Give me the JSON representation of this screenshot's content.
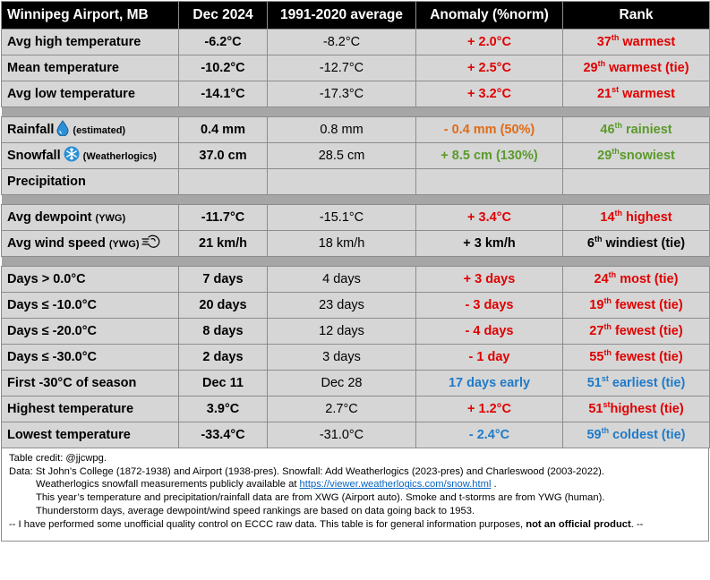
{
  "colors": {
    "red": "#e00000",
    "orange": "#e06b17",
    "green": "#5a9a2a",
    "blue": "#1f7ac8"
  },
  "header": {
    "location": "Winnipeg Airport, MB",
    "month": "Dec 2024",
    "average": "1991-2020 average",
    "anomaly": "Anomaly (%norm)",
    "rank": "Rank"
  },
  "rows": {
    "avg_high": {
      "label": "Avg high temperature",
      "value": "-6.2°C",
      "avg": "-8.2°C",
      "anomaly": "+ 2.0°C",
      "rank_num": "37",
      "rank_sup": "th",
      "rank_text": " warmest"
    },
    "mean_temp": {
      "label": "Mean temperature",
      "value": "-10.2°C",
      "avg": "-12.7°C",
      "anomaly": "+ 2.5°C",
      "rank_num": "29",
      "rank_sup": "th",
      "rank_text": " warmest (tie)"
    },
    "avg_low": {
      "label": "Avg low temperature",
      "value": "-14.1°C",
      "avg": "-17.3°C",
      "anomaly": "+ 3.2°C",
      "rank_num": "21",
      "rank_sup": "st",
      "rank_text": " warmest"
    },
    "rainfall": {
      "label": "Rainfall",
      "note": "(estimated)",
      "icon": "water-drop-icon",
      "value": "0.4 mm",
      "avg": "0.8 mm",
      "anomaly": "- 0.4 mm (50%)",
      "rank_num": "46",
      "rank_sup": "th",
      "rank_text": " rainiest"
    },
    "snowfall": {
      "label": "Snowfall",
      "note": "(Weatherlogics)",
      "icon": "snowflake-icon",
      "value": "37.0 cm",
      "avg": "28.5 cm",
      "anomaly": "+ 8.5 cm (130%)",
      "rank_num": "29",
      "rank_sup": "th",
      "rank_text": "snowiest"
    },
    "precip": {
      "label": "Precipitation"
    },
    "dewpoint": {
      "label": "Avg dewpoint",
      "note": "(YWG)",
      "value": "-11.7°C",
      "avg": "-15.1°C",
      "anomaly": "+ 3.4°C",
      "rank_num": "14",
      "rank_sup": "th",
      "rank_text": " highest"
    },
    "wind": {
      "label": "Avg wind speed",
      "note": "(YWG)",
      "icon": "wind-icon",
      "value": "21 km/h",
      "avg": "18 km/h",
      "anomaly": "+ 3 km/h",
      "rank_num": "6",
      "rank_sup": "th",
      "rank_text": " windiest (tie)"
    },
    "days_above0": {
      "label": "Days > 0.0°C",
      "value": "7 days",
      "avg": "4 days",
      "anomaly": "+ 3 days",
      "rank_num": "24",
      "rank_sup": "th",
      "rank_text": " most (tie)"
    },
    "days_m10": {
      "label": "Days  ≤ -10.0°C",
      "value": "20 days",
      "avg": "23 days",
      "anomaly": "- 3 days",
      "rank_num": "19",
      "rank_sup": "th",
      "rank_text": " fewest (tie)"
    },
    "days_m20": {
      "label": "Days  ≤ -20.0°C",
      "value": "8 days",
      "avg": "12 days",
      "anomaly": "- 4 days",
      "rank_num": "27",
      "rank_sup": "th",
      "rank_text": " fewest (tie)"
    },
    "days_m30": {
      "label": "Days  ≤ -30.0°C",
      "value": "2 days",
      "avg": "3 days",
      "anomaly": "- 1 day",
      "rank_num": "55",
      "rank_sup": "th",
      "rank_text": " fewest (tie)"
    },
    "first_m30": {
      "label": "First -30°C of season",
      "value": "Dec 11",
      "avg": "Dec 28",
      "anomaly": "17 days early",
      "rank_num": "51",
      "rank_sup": "st",
      "rank_text": " earliest (tie)"
    },
    "highest": {
      "label": "Highest temperature",
      "value": "3.9°C",
      "avg": "2.7°C",
      "anomaly": "+ 1.2°C",
      "rank_num": "51",
      "rank_sup": "st",
      "rank_text": "highest (tie)"
    },
    "lowest": {
      "label": "Lowest temperature",
      "value": "-33.4°C",
      "avg": "-31.0°C",
      "anomaly": "- 2.4°C",
      "rank_num": "59",
      "rank_sup": "th",
      "rank_text": " coldest (tie)"
    }
  },
  "notes": {
    "credit": "Table credit: @jjcwpg.",
    "data_line": "Data: St John’s College (1872-1938) and Airport (1938-pres). Snowfall: Add Weatherlogics (2023-pres) and Charleswood (2003-2022).",
    "weatherlogics_text": "Weatherlogics snowfall measurements publicly available at ",
    "weatherlogics_link": "https://viewer.weatherlogics.com/snow.html",
    "weatherlogics_end": " .",
    "source_line": "This year’s temperature  and precipitation/rainfall data are from XWG (Airport auto). Smoke  and t-storms are from YWG (human).",
    "ranking_line": "Thunderstorm days, average dewpoint/wind speed rankings are based on data going back to 1953.",
    "disclaimer_text": "-- I have performed  some unofficial quality control on ECCC raw data. This table is for general information purposes, ",
    "disclaimer_bold": "not an official  product",
    "disclaimer_end": ".  --"
  }
}
